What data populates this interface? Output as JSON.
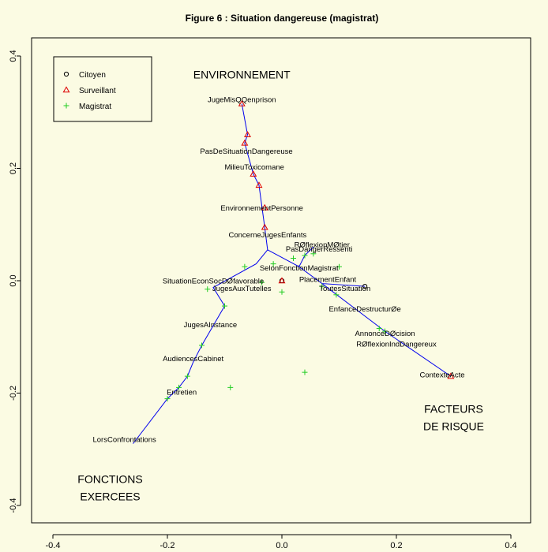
{
  "chart_data": {
    "type": "scatter",
    "title": "Figure 6 : Situation dangereuse (magistrat)",
    "xlabel": "",
    "ylabel": "",
    "xlim": [
      -0.4,
      0.4
    ],
    "ylim": [
      -0.4,
      0.4
    ],
    "x_ticks": [
      "-0.4",
      "-0.2",
      "0.0",
      "0.2",
      "0.4"
    ],
    "y_ticks": [
      "-0.4",
      "-0.2",
      "0.0",
      "0.2",
      "0.4"
    ],
    "grid": false,
    "legend_position": "top-left",
    "colors": {
      "citoyen": "#000000",
      "surveillant": "#dd0000",
      "magistrat": "#22cc22",
      "tree": "#0000ee",
      "background": "#fbfbe3"
    },
    "series": [
      {
        "name": "Citoyen",
        "marker": "circle",
        "points": [
          [
            0.0,
            0.0
          ],
          [
            0.145,
            -0.01
          ]
        ]
      },
      {
        "name": "Surveillant",
        "marker": "triangle",
        "points": [
          [
            -0.07,
            0.315
          ],
          [
            -0.06,
            0.26
          ],
          [
            -0.065,
            0.245
          ],
          [
            -0.05,
            0.19
          ],
          [
            -0.04,
            0.17
          ],
          [
            -0.03,
            0.095
          ],
          [
            -0.03,
            0.13
          ],
          [
            0.0,
            0.0
          ],
          [
            0.295,
            -0.17
          ]
        ]
      },
      {
        "name": "Magistrat",
        "marker": "plus",
        "points": [
          [
            -0.065,
            0.025
          ],
          [
            -0.015,
            0.03
          ],
          [
            0.04,
            0.045
          ],
          [
            0.055,
            0.048
          ],
          [
            0.1,
            0.025
          ],
          [
            -0.13,
            -0.015
          ],
          [
            -0.1,
            -0.045
          ],
          [
            0.0,
            -0.02
          ],
          [
            0.07,
            -0.01
          ],
          [
            0.095,
            -0.025
          ],
          [
            -0.14,
            -0.115
          ],
          [
            -0.165,
            -0.17
          ],
          [
            -0.18,
            -0.19
          ],
          [
            -0.09,
            -0.19
          ],
          [
            0.04,
            -0.163
          ],
          [
            -0.2,
            -0.21
          ],
          [
            0.17,
            -0.085
          ],
          [
            0.18,
            -0.09
          ],
          [
            -0.035,
            -0.003
          ],
          [
            0.02,
            0.04
          ]
        ]
      }
    ],
    "labels": [
      {
        "text": "JugeMisQQenprison",
        "x": -0.07,
        "y": 0.318
      },
      {
        "text": "PasDeSituationDangereuse",
        "x": -0.062,
        "y": 0.226
      },
      {
        "text": "MilieuToxicomane",
        "x": -0.048,
        "y": 0.198
      },
      {
        "text": "EnvironnementPersonne",
        "x": -0.035,
        "y": 0.125
      },
      {
        "text": "ConcerneJugesEnfants",
        "x": -0.025,
        "y": 0.077
      },
      {
        "text": "RØflexionMØtier",
        "x": 0.07,
        "y": 0.06
      },
      {
        "text": "PasDangerRessenti",
        "x": 0.065,
        "y": 0.052
      },
      {
        "text": "SelonFonctionMagistrat",
        "x": 0.03,
        "y": 0.018
      },
      {
        "text": "PlacementEnfant",
        "x": 0.08,
        "y": -0.002
      },
      {
        "text": "SituationEconSocDØfavorable",
        "x": -0.12,
        "y": -0.005
      },
      {
        "text": "JugesAuxTutelles",
        "x": -0.07,
        "y": -0.018
      },
      {
        "text": "ToutesSituation",
        "x": 0.11,
        "y": -0.018
      },
      {
        "text": "EnfanceDestructurØe",
        "x": 0.145,
        "y": -0.055
      },
      {
        "text": "JugesAInstance",
        "x": -0.125,
        "y": -0.083
      },
      {
        "text": "AnnonceDØcision",
        "x": 0.18,
        "y": -0.098
      },
      {
        "text": "RØflexionIndDangereux",
        "x": 0.2,
        "y": -0.117
      },
      {
        "text": "AudiencesCabinet",
        "x": -0.155,
        "y": -0.143
      },
      {
        "text": "ContexteActe",
        "x": 0.28,
        "y": -0.172
      },
      {
        "text": "Entretien",
        "x": -0.175,
        "y": -0.203
      },
      {
        "text": "LorsConfrontations",
        "x": -0.275,
        "y": -0.287
      }
    ],
    "edges": [
      [
        [
          -0.07,
          0.315
        ],
        [
          -0.06,
          0.26
        ],
        [
          -0.065,
          0.245
        ],
        [
          -0.05,
          0.19
        ],
        [
          -0.04,
          0.17
        ],
        [
          -0.03,
          0.095
        ],
        [
          -0.025,
          0.055
        ]
      ],
      [
        [
          -0.025,
          0.055
        ],
        [
          -0.045,
          0.03
        ],
        [
          -0.12,
          -0.012
        ],
        [
          -0.1,
          -0.045
        ],
        [
          -0.14,
          -0.115
        ],
        [
          -0.155,
          -0.145
        ],
        [
          -0.165,
          -0.17
        ],
        [
          -0.18,
          -0.19
        ],
        [
          -0.2,
          -0.21
        ],
        [
          -0.26,
          -0.29
        ]
      ],
      [
        [
          -0.025,
          0.055
        ],
        [
          0.03,
          0.025
        ],
        [
          0.07,
          -0.005
        ],
        [
          0.145,
          -0.01
        ]
      ],
      [
        [
          0.07,
          -0.005
        ],
        [
          0.18,
          -0.09
        ],
        [
          0.295,
          -0.17
        ]
      ],
      [
        [
          0.03,
          0.025
        ],
        [
          0.04,
          0.045
        ],
        [
          0.055,
          0.06
        ]
      ]
    ],
    "annotations": [
      {
        "lines": [
          "ENVIRONNEMENT"
        ],
        "x": -0.07,
        "y": 0.36
      },
      {
        "lines": [
          "FACTEURS",
          "DE RISQUE"
        ],
        "x": 0.3,
        "y": -0.235
      },
      {
        "lines": [
          "FONCTIONS",
          "EXERCEES"
        ],
        "x": -0.3,
        "y": -0.36
      }
    ]
  }
}
